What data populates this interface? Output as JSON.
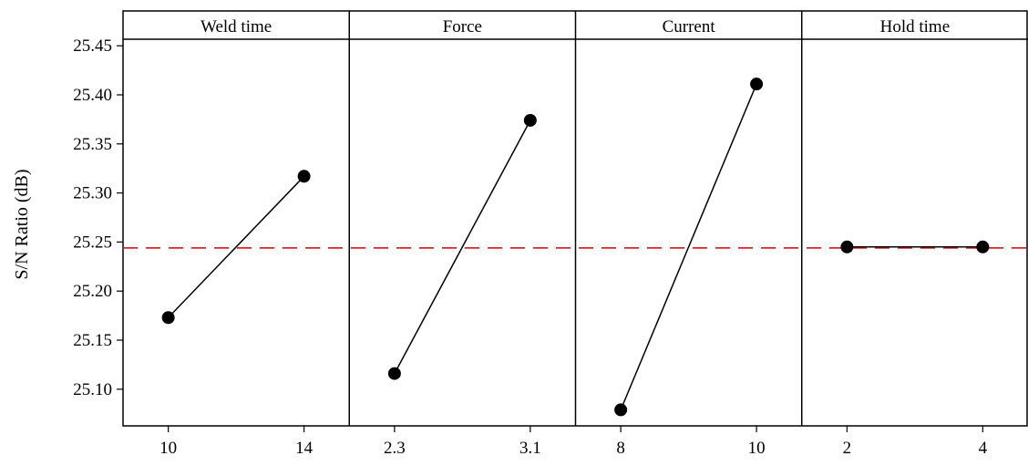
{
  "chart_data": {
    "type": "line",
    "ylabel": "S/N Ratio (dB)",
    "ylim": [
      25.05,
      25.46
    ],
    "yticks": [
      "25.10",
      "25.15",
      "25.20",
      "25.25",
      "25.30",
      "25.35",
      "25.40",
      "25.45"
    ],
    "reference_line": {
      "value": 25.244,
      "color": "#d62728",
      "style": "dashed"
    },
    "point_color": "#000000",
    "panels": [
      {
        "title": "Weld time",
        "categories": [
          "10",
          "14"
        ],
        "values": [
          25.173,
          25.317
        ]
      },
      {
        "title": "Force",
        "categories": [
          "2.3",
          "3.1"
        ],
        "values": [
          25.116,
          25.374
        ]
      },
      {
        "title": "Current",
        "categories": [
          "8",
          "10"
        ],
        "values": [
          25.079,
          25.411
        ]
      },
      {
        "title": "Hold time",
        "categories": [
          "2",
          "4"
        ],
        "values": [
          25.245,
          25.245
        ]
      }
    ]
  }
}
